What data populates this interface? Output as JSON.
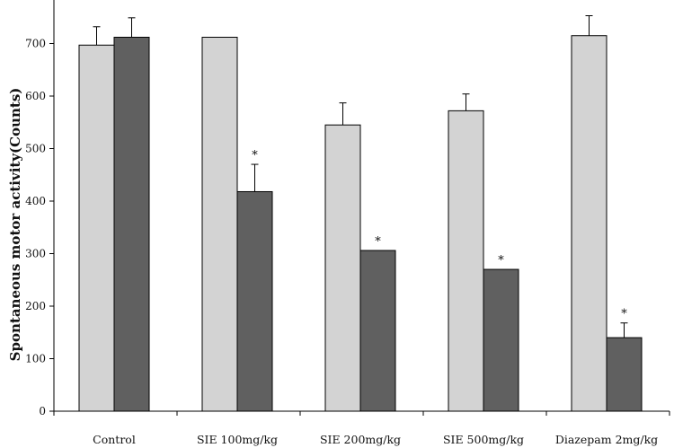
{
  "chart_data": {
    "type": "bar",
    "title": "",
    "xlabel": "",
    "ylabel": "Spontaneous motor activity(Counts)",
    "ylim": [
      0,
      750
    ],
    "yticks": [
      0,
      100,
      200,
      300,
      400,
      500,
      600,
      700
    ],
    "categories": [
      "Control",
      "SIE 100mg/kg",
      "SIE 200mg/kg",
      "SIE 500mg/kg",
      "Diazepam 2mg/kg"
    ],
    "series": [
      {
        "values": [
          697,
          712,
          545,
          572,
          715
        ],
        "errors": [
          35,
          null,
          42,
          32,
          38
        ],
        "color": "#d3d3d3"
      },
      {
        "values": [
          712,
          418,
          306,
          270,
          140
        ],
        "errors": [
          37,
          52,
          null,
          null,
          28
        ],
        "color": "#606060"
      }
    ],
    "annotations": [
      {
        "category_index": 1,
        "series_index": 1,
        "text": "*"
      },
      {
        "category_index": 2,
        "series_index": 1,
        "text": "*"
      },
      {
        "category_index": 3,
        "series_index": 1,
        "text": "*"
      },
      {
        "category_index": 4,
        "series_index": 1,
        "text": "*"
      }
    ],
    "grid": false,
    "legend": "none"
  }
}
